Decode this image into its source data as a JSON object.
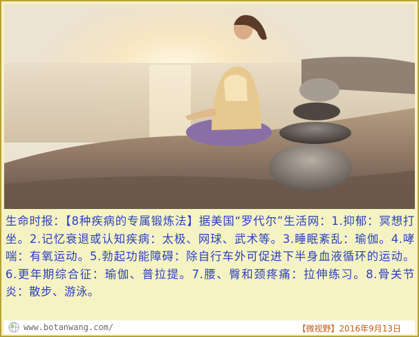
{
  "caption": {
    "text": "生命时报：【8种疾病的专属锻炼法】据美国“罗代尔”生活网：1.抑郁：冥想打坐。2.记忆衰退或认知疾病：太极、网球、武术等。3.睡眠紊乱：瑜伽。4.哮喘：有氧运动。5.勃起功能障碍：除自行车外可促进下半身血液循环的运动。6.更年期综合征：瑜伽、普拉提。7.腰、臀和颈疼痛：拉伸练习。8.骨关节炎：散步、游泳。"
  },
  "footer": {
    "site": "www.botanwang.com/",
    "credit": "【微视野】2016年9月13日"
  },
  "colors": {
    "border": "#b7a232",
    "background": "#f6f3c3",
    "caption_text": "#2a3fc0",
    "credit_text": "#c25a12"
  },
  "icons": {
    "footer": "globe-icon"
  }
}
